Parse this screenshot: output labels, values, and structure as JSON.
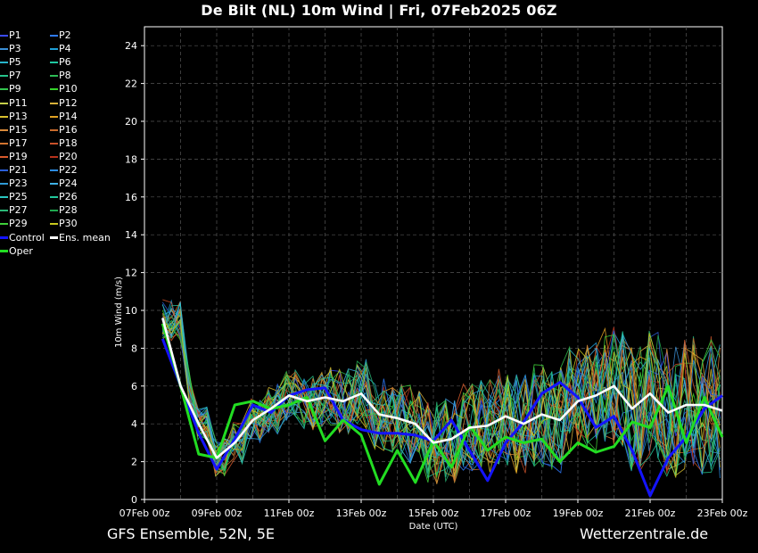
{
  "title": "De Bilt  (NL)  10m Wind | Fri, 07Feb2025 06Z",
  "footer_left": "GFS Ensemble, 52N, 5E",
  "footer_right": "Wetterzentrale.de",
  "legend": [
    {
      "name": "P1",
      "color": "#3b4bff"
    },
    {
      "name": "P2",
      "color": "#2f7bff"
    },
    {
      "name": "P3",
      "color": "#3b8fd6"
    },
    {
      "name": "P4",
      "color": "#1e9fd8"
    },
    {
      "name": "P5",
      "color": "#27b3c9"
    },
    {
      "name": "P6",
      "color": "#1fc7a0"
    },
    {
      "name": "P7",
      "color": "#26c28a"
    },
    {
      "name": "P8",
      "color": "#2dbb55"
    },
    {
      "name": "P9",
      "color": "#33c44e"
    },
    {
      "name": "P10",
      "color": "#35d42a"
    },
    {
      "name": "P11",
      "color": "#c7d04a"
    },
    {
      "name": "P12",
      "color": "#d8b23a"
    },
    {
      "name": "P13",
      "color": "#d9c02e"
    },
    {
      "name": "P14",
      "color": "#e0a223"
    },
    {
      "name": "P15",
      "color": "#d98a3a"
    },
    {
      "name": "P16",
      "color": "#c86b2c"
    },
    {
      "name": "P17",
      "color": "#d2742f"
    },
    {
      "name": "P18",
      "color": "#c9512a"
    },
    {
      "name": "P19",
      "color": "#d85a2c"
    },
    {
      "name": "P20",
      "color": "#b8321c"
    },
    {
      "name": "P21",
      "color": "#2a5ed8"
    },
    {
      "name": "P22",
      "color": "#2c8be0"
    },
    {
      "name": "P23",
      "color": "#2f9ad6"
    },
    {
      "name": "P24",
      "color": "#3fb1e6"
    },
    {
      "name": "P25",
      "color": "#2bc6c0"
    },
    {
      "name": "P26",
      "color": "#23c79b"
    },
    {
      "name": "P27",
      "color": "#2ab877"
    },
    {
      "name": "P28",
      "color": "#1fa84f"
    },
    {
      "name": "P29",
      "color": "#3fd03a"
    },
    {
      "name": "P30",
      "color": "#c8c81e"
    },
    {
      "name": "Control",
      "color": "#1414ff"
    },
    {
      "name": "Ens. mean",
      "color": "#ffffff"
    },
    {
      "name": "Oper",
      "color": "#22dd22"
    }
  ],
  "chart_data": {
    "type": "line",
    "xlabel": "Date (UTC)",
    "ylabel": "10m Wind (m/s)",
    "ylim": [
      0,
      25
    ],
    "yticks": [
      0,
      2,
      4,
      6,
      8,
      10,
      12,
      14,
      16,
      18,
      20,
      22,
      24
    ],
    "xlim": [
      0,
      16
    ],
    "xtick_labels": [
      "07Feb 00z",
      "09Feb 00z",
      "11Feb 00z",
      "13Feb 00z",
      "15Feb 00z",
      "17Feb 00z",
      "19Feb 00z",
      "21Feb 00z",
      "23Feb 00z"
    ],
    "xtick_values": [
      0,
      2,
      4,
      6,
      8,
      10,
      12,
      14,
      16
    ],
    "grid": true,
    "series": [
      {
        "name": "Ens. mean",
        "x": [
          0.5,
          1,
          1.5,
          2,
          2.5,
          3,
          3.5,
          4,
          4.5,
          5,
          5.5,
          6,
          6.5,
          7,
          7.5,
          8,
          8.5,
          9,
          9.5,
          10,
          10.5,
          11,
          11.5,
          12,
          12.5,
          13,
          13.5,
          14,
          14.5,
          15,
          15.5,
          16
        ],
        "values": [
          9.6,
          6,
          4,
          2.2,
          3,
          4.2,
          4.8,
          5.5,
          5.2,
          5.4,
          5.2,
          5.6,
          4.5,
          4.3,
          4.0,
          3.0,
          3.2,
          3.8,
          3.9,
          4.4,
          4.0,
          4.5,
          4.2,
          5.2,
          5.5,
          6.0,
          4.8,
          5.6,
          4.6,
          5.0,
          5.0,
          4.7
        ]
      },
      {
        "name": "Control",
        "x": [
          0.5,
          1,
          1.5,
          2,
          2.5,
          3,
          3.5,
          4,
          4.5,
          5,
          5.5,
          6,
          6.5,
          7,
          7.5,
          8,
          8.5,
          9,
          9.5,
          10,
          10.5,
          11,
          11.5,
          12,
          12.5,
          13,
          13.5,
          14,
          14.5,
          15,
          15.5,
          16
        ],
        "values": [
          8.5,
          6,
          3.5,
          1.6,
          3.2,
          5,
          4.6,
          5.5,
          5.8,
          5.9,
          4.2,
          3.7,
          3.5,
          3.5,
          3.4,
          3.1,
          4.2,
          2.6,
          1.0,
          3.0,
          4.1,
          5.6,
          6.2,
          5.4,
          3.8,
          4.4,
          2.6,
          0.2,
          2.2,
          3.3,
          4.8,
          5.5
        ]
      },
      {
        "name": "Oper",
        "x": [
          0.5,
          1,
          1.5,
          2,
          2.5,
          3,
          3.5,
          4,
          4.5,
          5,
          5.5,
          6,
          6.5,
          7,
          7.5,
          8,
          8.5,
          9,
          9.5,
          10,
          10.5,
          11,
          11.5,
          12,
          12.5,
          13,
          13.5,
          14,
          14.5,
          15,
          15.5,
          16
        ],
        "values": [
          9.3,
          6,
          2.4,
          2.2,
          5.0,
          5.2,
          4.8,
          5.0,
          5.4,
          3.1,
          4.2,
          3.4,
          0.8,
          2.6,
          0.9,
          3.1,
          1.7,
          3.9,
          2.6,
          3.3,
          3.0,
          3.2,
          2.0,
          3.0,
          2.5,
          2.8,
          4.1,
          3.8,
          6.0,
          3.0,
          5.4,
          3.3
        ]
      }
    ]
  }
}
